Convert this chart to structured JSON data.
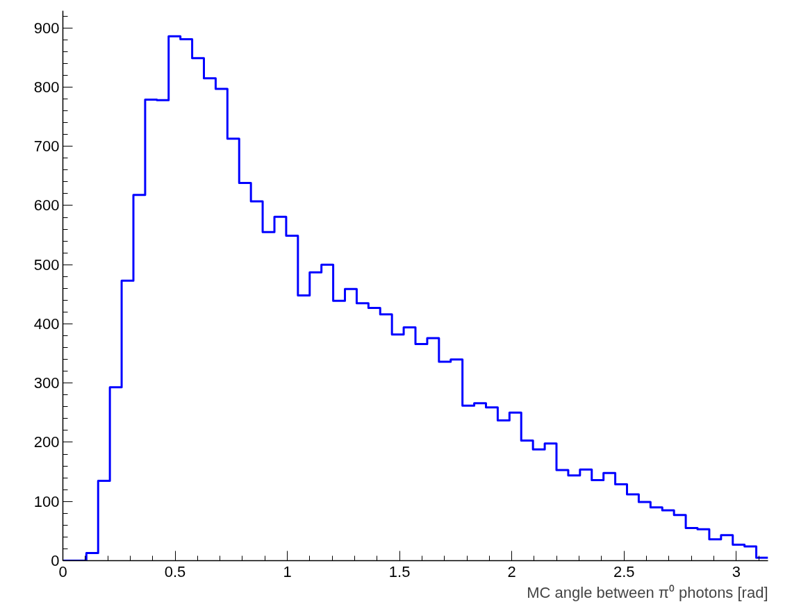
{
  "chart_data": {
    "type": "histogram",
    "xlabel": "MC angle between π⁰ photons [rad]",
    "bins": [
      0,
      0.0524,
      0.1047,
      0.1571,
      0.2094,
      0.2618,
      0.3142,
      0.3665,
      0.4189,
      0.4712,
      0.5236,
      0.576,
      0.6283,
      0.6807,
      0.733,
      0.7854,
      0.8378,
      0.8901,
      0.9425,
      0.9948,
      1.0472,
      1.0996,
      1.1519,
      1.2043,
      1.2566,
      1.309,
      1.3614,
      1.4137,
      1.4661,
      1.5184,
      1.5708,
      1.6232,
      1.6755,
      1.7279,
      1.7802,
      1.8326,
      1.885,
      1.9373,
      1.9897,
      2.042,
      2.0944,
      2.1468,
      2.1991,
      2.2515,
      2.3038,
      2.3562,
      2.4086,
      2.4609,
      2.5133,
      2.5656,
      2.618,
      2.6704,
      2.7227,
      2.7751,
      2.8274,
      2.8798,
      2.9322,
      2.9845,
      3.0369,
      3.0892,
      3.1416
    ],
    "values": [
      0,
      0,
      13,
      135,
      293,
      473,
      618,
      779,
      778,
      886,
      881,
      849,
      815,
      797,
      713,
      638,
      607,
      555,
      581,
      549,
      448,
      487,
      500,
      439,
      459,
      435,
      427,
      416,
      382,
      394,
      366,
      376,
      336,
      340,
      262,
      266,
      259,
      237,
      250,
      203,
      188,
      198,
      153,
      144,
      154,
      136,
      148,
      129,
      112,
      99,
      90,
      85,
      77,
      55,
      53,
      36,
      43,
      27,
      24,
      5
    ],
    "color": "#0000ff",
    "xlim": [
      0,
      3.1416
    ],
    "ylim": [
      0,
      929
    ],
    "xticks": [
      0,
      0.5,
      1,
      1.5,
      2,
      2.5,
      3
    ],
    "yticks": [
      0,
      100,
      200,
      300,
      400,
      500,
      600,
      700,
      800,
      900
    ],
    "grid": false
  }
}
